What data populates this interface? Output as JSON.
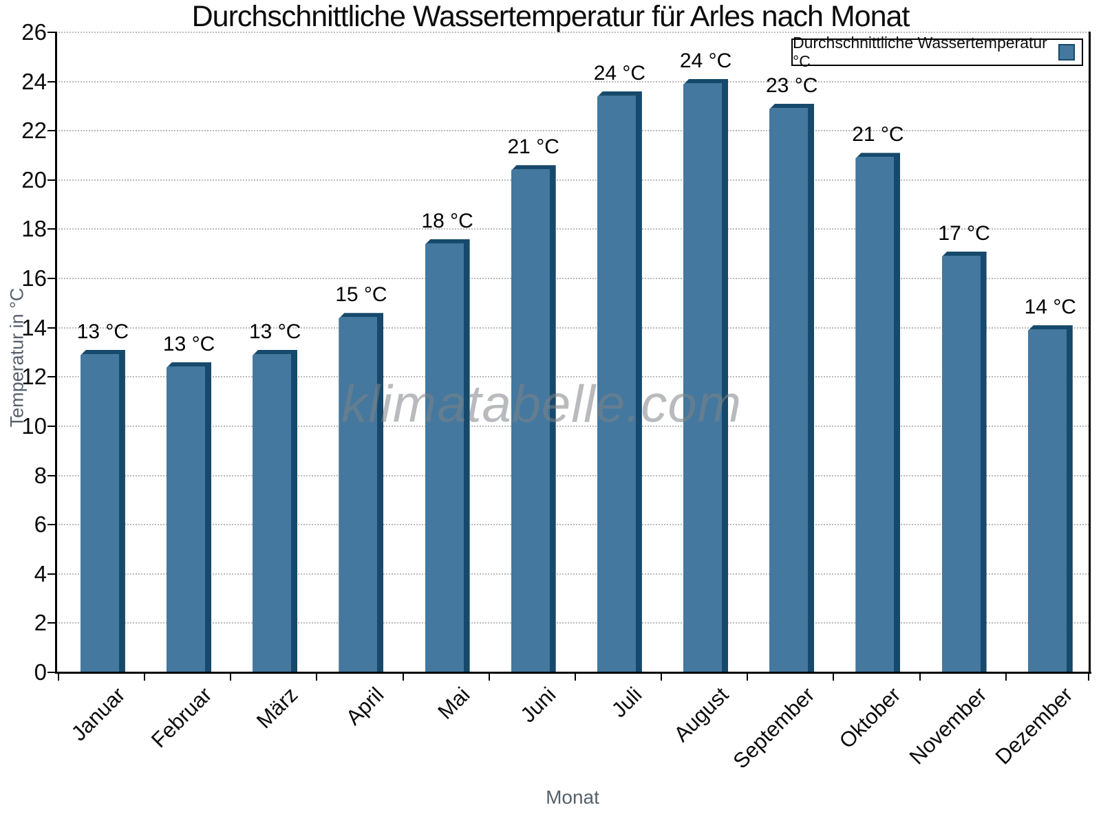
{
  "chart_data": {
    "type": "bar",
    "title": "Durchschnittliche Wassertemperatur für Arles nach Monat",
    "legend": {
      "label": "Durchschnittliche Wassertemperatur °C",
      "position": "top-right"
    },
    "xlabel": "Monat",
    "ylabel": "Temperatur in °C",
    "ylim": [
      0,
      26
    ],
    "ytick_step": 2,
    "grid": "horizontal dotted gridlines every 2 °C",
    "categories": [
      "Januar",
      "Februar",
      "März",
      "April",
      "Mai",
      "Juni",
      "Juli",
      "August",
      "September",
      "Oktober",
      "November",
      "Dezember"
    ],
    "values": [
      13.1,
      12.6,
      13.1,
      14.6,
      17.6,
      20.6,
      23.6,
      24.1,
      23.1,
      21.1,
      17.1,
      14.1
    ],
    "bar_labels": [
      "13 °C",
      "13 °C",
      "13 °C",
      "15 °C",
      "18 °C",
      "21 °C",
      "24 °C",
      "24 °C",
      "23 °C",
      "21 °C",
      "17 °C",
      "14 °C"
    ],
    "watermark": "klimatabelle.com",
    "colors": {
      "bar_face": "#44789e",
      "bar_edge": "#16496b",
      "grid": "#b9b9b9",
      "axis": "#000000",
      "axis_title_gray": "#55616d",
      "tick_label": "#0c0c0c",
      "watermark_gray": "#9aa0a5"
    }
  }
}
